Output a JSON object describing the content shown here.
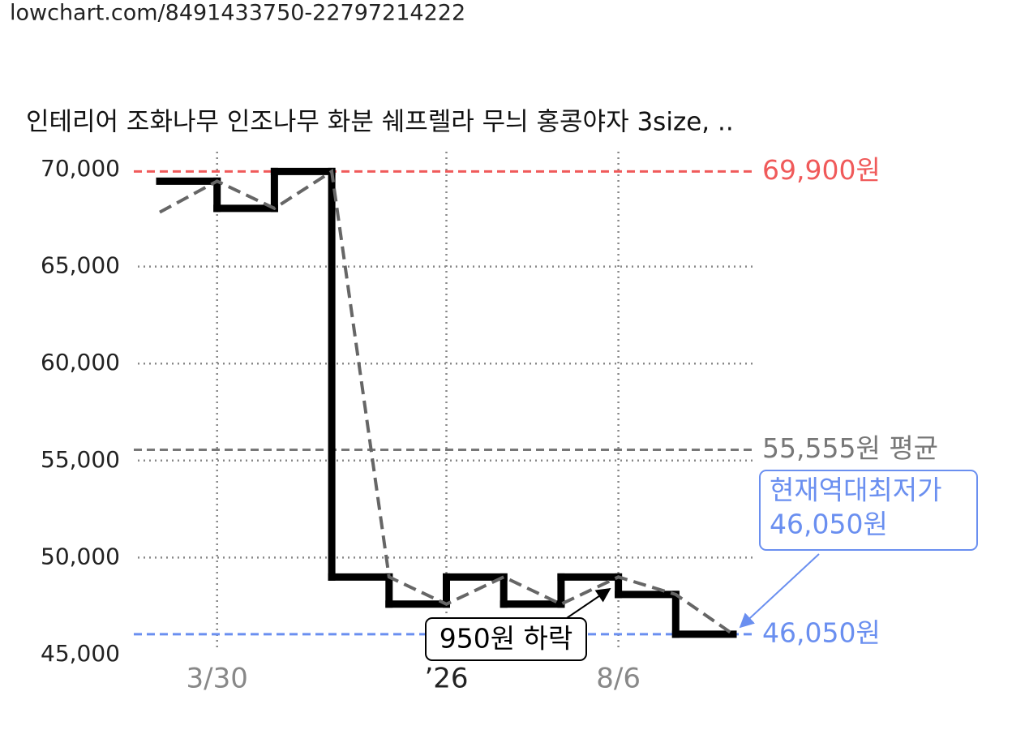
{
  "url": "lowchart.com/8491433750-22797214222",
  "chart_data": {
    "type": "step-line",
    "title": "인테리어 조화나무 인조나무 화분 쉐프렐라 무늬 홍콩야자 3size, ..",
    "categories": [
      null,
      "3/30",
      null,
      null,
      null,
      "’26",
      null,
      null,
      "8/6",
      null,
      null
    ],
    "series": [
      {
        "color": "#000000",
        "values": [
          67800,
          69400,
          68000,
          69900,
          49000,
          47600,
          49000,
          47600,
          49000,
          48100,
          46050
        ]
      }
    ],
    "ylim": [
      45000,
      70000
    ],
    "yticks": [
      {
        "value": 45000,
        "label": "45,000"
      },
      {
        "value": 50000,
        "label": "50,000"
      },
      {
        "value": 55000,
        "label": "55,000"
      },
      {
        "value": 60000,
        "label": "60,000"
      },
      {
        "value": 65000,
        "label": "65,000"
      },
      {
        "value": 70000,
        "label": "70,000"
      }
    ],
    "grid": true,
    "reference_lines": [
      {
        "value": 69900,
        "label": "69,900원",
        "color": "#f05a5a"
      },
      {
        "value": 55555,
        "label": "55,555원 평균",
        "color": "#777777"
      },
      {
        "value": 46050,
        "label": "46,050원",
        "color": "#6a8ff0"
      }
    ],
    "annotations": [
      {
        "lines": [
          "현재역대최저가",
          "46,050원"
        ],
        "color": "#6a8ff0"
      },
      {
        "lines": [
          "950원 하락"
        ],
        "color": "#000000"
      }
    ]
  }
}
